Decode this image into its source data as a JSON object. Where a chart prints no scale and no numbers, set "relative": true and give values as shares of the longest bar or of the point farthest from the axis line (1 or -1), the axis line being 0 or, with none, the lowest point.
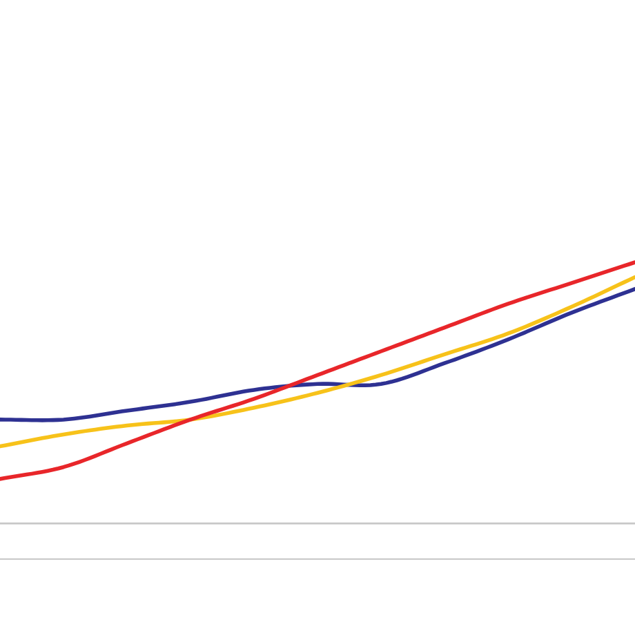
{
  "chart_data": {
    "type": "line",
    "relative": true,
    "categories": [
      null,
      null,
      null,
      null,
      null,
      null,
      null,
      null,
      null,
      null,
      null
    ],
    "series": [
      {
        "color": "#2e3192",
        "values": [
          0.47,
          0.47,
          0.5,
          0.53,
          0.57,
          0.59,
          0.59,
          0.66,
          0.74,
          0.83,
          0.91
        ]
      },
      {
        "color": "#f7c21a",
        "values": [
          0.38,
          0.42,
          0.45,
          0.47,
          0.51,
          0.56,
          0.62,
          0.69,
          0.76,
          0.85,
          0.95
        ]
      },
      {
        "color": "#e8262a",
        "values": [
          0.27,
          0.31,
          0.39,
          0.47,
          0.54,
          0.62,
          0.7,
          0.78,
          0.86,
          0.93,
          1
        ]
      }
    ],
    "ref_lines": [
      {
        "axis": "y",
        "value": 0.12,
        "color": "#c8c8c8"
      }
    ],
    "grid": false,
    "legend": false,
    "marker": "none",
    "line_style": "solid"
  }
}
